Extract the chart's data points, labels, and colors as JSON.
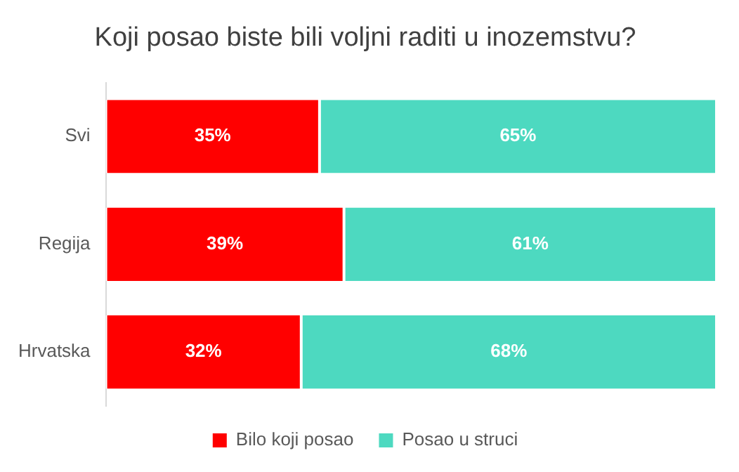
{
  "chart_data": {
    "type": "bar",
    "title": "Koji posao biste bili voljni raditi u inozemstvu?",
    "orientation": "horizontal",
    "stacked": true,
    "categories": [
      "Svi",
      "Regija",
      "Hrvatska"
    ],
    "xlim": [
      0,
      100
    ],
    "tick_labels": "y",
    "grid": false,
    "legend": "bottom",
    "series": [
      {
        "name": "Bilo koji posao",
        "color": "#ff0000",
        "values": [
          35,
          39,
          32
        ],
        "value_labels": [
          "35%",
          "39%",
          "32%"
        ]
      },
      {
        "name": "Posao u struci",
        "color": "#4dd9c0",
        "values": [
          65,
          61,
          68
        ],
        "value_labels": [
          "65%",
          "61%",
          "68%"
        ]
      }
    ]
  }
}
